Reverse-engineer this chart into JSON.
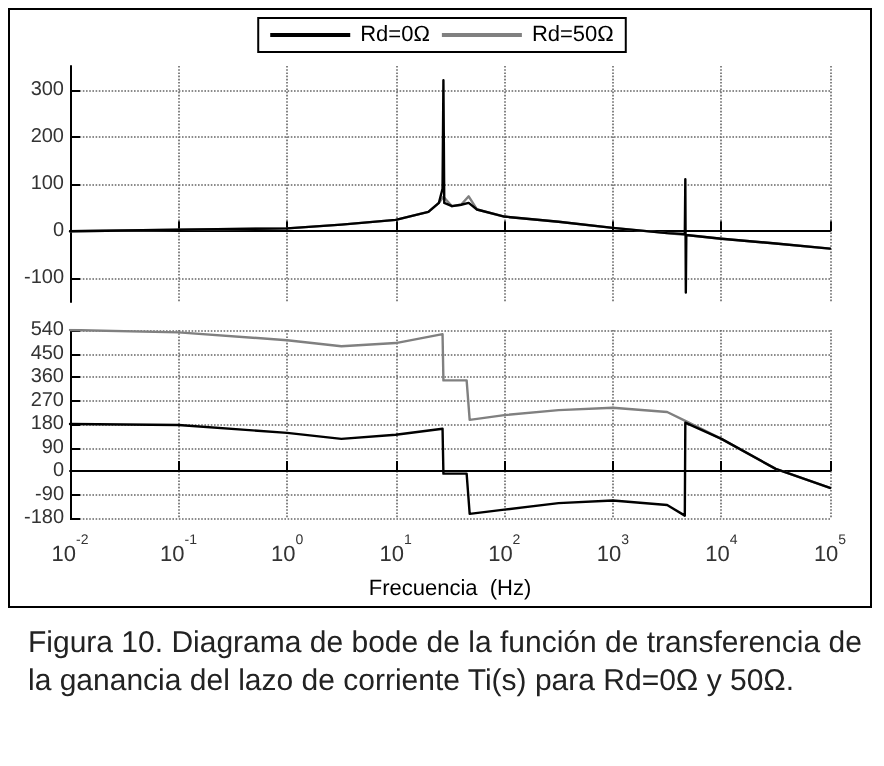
{
  "chart_data": [
    {
      "type": "line",
      "xlim": [
        0.01,
        100000
      ],
      "ylim": [
        -150,
        350
      ],
      "yticks": [
        -100,
        0,
        100,
        200,
        300
      ],
      "log": "x",
      "grid": true,
      "legend": "top",
      "tick_labels": "y",
      "marker": "none",
      "line_style": "solid",
      "series": [
        {
          "name": "Rd=0Ω",
          "color": "#000000",
          "x": [
            0.01,
            0.1,
            1,
            3.16,
            10,
            20,
            25,
            27,
            27.5,
            28,
            33,
            40,
            47,
            56,
            100,
            316,
            1000,
            3162,
            4600,
            4650,
            4700,
            4750,
            10000,
            31623,
            100000
          ],
          "values": [
            0,
            3,
            6,
            14,
            24,
            41,
            60,
            90,
            320,
            60,
            53,
            56,
            60,
            46,
            31,
            20,
            7,
            -4,
            -6,
            110,
            -130,
            -8,
            -16,
            -26,
            -37
          ]
        },
        {
          "name": "Rd=50Ω",
          "color": "#808080",
          "x": [
            0.01,
            0.1,
            1,
            3.16,
            10,
            20,
            25,
            27.5,
            33,
            40,
            47,
            56,
            100,
            316,
            1000,
            3162,
            10000,
            31623,
            100000
          ],
          "values": [
            0,
            3,
            6,
            14,
            24,
            41,
            60,
            73,
            53,
            56,
            74,
            46,
            31,
            20,
            7,
            -4,
            -16,
            -26,
            -37
          ]
        }
      ]
    },
    {
      "type": "line",
      "xlim": [
        0.01,
        100000
      ],
      "ylim": [
        -180,
        540
      ],
      "yticks": [
        -180,
        -90,
        0,
        90,
        180,
        270,
        360,
        450,
        540
      ],
      "log": "x",
      "grid": true,
      "marker": "none",
      "line_style": "solid",
      "xticks": [
        {
          "value": 0.01,
          "label": "10$^{-2}$"
        },
        {
          "value": 0.1,
          "label": "10$^{-1}$"
        },
        {
          "value": 1,
          "label": "10$^{0}$"
        },
        {
          "value": 10,
          "label": "10$^{1}$"
        },
        {
          "value": 100,
          "label": "10$^{2}$"
        },
        {
          "value": 1000,
          "label": "10$^{3}$"
        },
        {
          "value": 10000,
          "label": "10$^{4}$"
        },
        {
          "value": 100000,
          "label": "10$^{5}$"
        }
      ],
      "xlabel": "Frecuencia  (Hz)",
      "annotations": [
        "Figura 10. Diagrama de bode de la función de transferencia de la ganancia del lazo de corriente Ti(s) para Rd=0Ω y 50Ω."
      ],
      "series": [
        {
          "color": "#000000",
          "x": [
            0.01,
            0.1,
            1,
            3.16,
            10,
            27,
            27.5,
            45,
            48,
            100,
            316,
            1000,
            3162,
            4600,
            4650,
            10000,
            31623,
            100000
          ],
          "values": [
            180,
            176,
            146,
            123,
            139,
            162,
            -10,
            -10,
            -164,
            -148,
            -123,
            -113,
            -130,
            -171,
            185,
            123,
            8,
            -65
          ]
        },
        {
          "color": "#808080",
          "x": [
            0.01,
            0.1,
            1,
            3.16,
            10,
            27,
            27.5,
            45,
            48,
            100,
            316,
            1000,
            3162,
            4700,
            10000,
            31623,
            100000
          ],
          "values": [
            540,
            531,
            501,
            478,
            490,
            524,
            347,
            347,
            196,
            214,
            233,
            242,
            226,
            191,
            123,
            8,
            -65
          ]
        }
      ]
    }
  ]
}
